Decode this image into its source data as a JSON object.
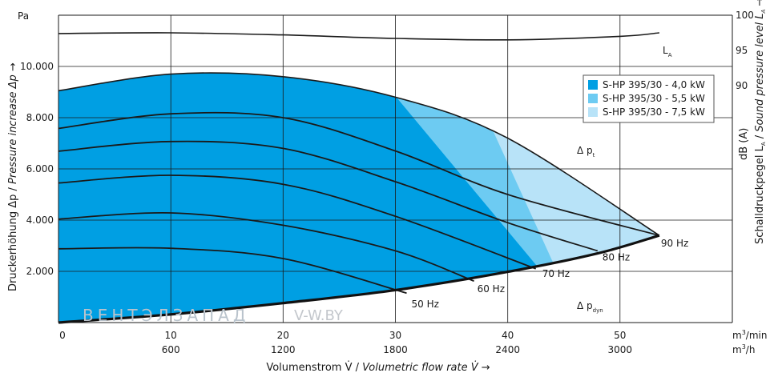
{
  "chart_data": {
    "type": "line",
    "y_left": {
      "unit": "Pa",
      "label_de": "Druckerhöhung Δp / ",
      "label_en": "Pressure increase Δp →",
      "ticks": [
        "2.000",
        "4.000",
        "6.000",
        "8.000",
        "10.000"
      ],
      "tick_values": [
        2000,
        4000,
        6000,
        8000,
        10000
      ],
      "range": [
        0,
        12000
      ]
    },
    "y_right": {
      "ticks": [
        "90",
        "95",
        "100"
      ],
      "tick_values": [
        90,
        95,
        100
      ],
      "range": [
        90,
        100
      ],
      "label_de": "Schalldruckpegel L",
      "label_sub": "A",
      "label_mid": " / ",
      "label_en": "Sound pressure level L",
      "label_en_sub": "A",
      "label_arrow": " →",
      "unit_label": "dB (A)"
    },
    "x_axis": {
      "ticks_min": [
        "0",
        "10",
        "20",
        "30",
        "40",
        "50"
      ],
      "ticks_h": [
        "600",
        "1200",
        "1800",
        "2400",
        "3000"
      ],
      "tick_values": [
        0,
        10,
        20,
        30,
        40,
        50
      ],
      "range": [
        0,
        60
      ],
      "unit_min_base": "m",
      "unit_min_exp": "3",
      "unit_min_suffix": "/min",
      "unit_h_base": "m",
      "unit_h_exp": "3",
      "unit_h_suffix": "/h",
      "title_de": "Volumenstrom V̇ / ",
      "title_en": "Volumetric flow rate V̇ →"
    },
    "legend": {
      "placement": "top-right",
      "entries": [
        {
          "label": "S-HP 395/30 - 4,0 kW",
          "color": "#009fe3"
        },
        {
          "label": "S-HP 395/30 - 5,5 kW",
          "color": "#6dcbf2"
        },
        {
          "label": "S-HP 395/30 - 7,5 kW",
          "color": "#b8e3f8"
        }
      ]
    },
    "annotations": {
      "delta_pt": "Δ p",
      "delta_pt_sub": "t",
      "delta_pdyn": "Δ p",
      "delta_pdyn_sub": "dyn",
      "la": "L",
      "la_sub": "A"
    },
    "frequency_curves": [
      {
        "label": "50 Hz",
        "points": [
          [
            0,
            2880
          ],
          [
            10,
            2900
          ],
          [
            20,
            2500
          ],
          [
            31,
            1150
          ]
        ]
      },
      {
        "label": "60 Hz",
        "points": [
          [
            0,
            4040
          ],
          [
            10,
            4280
          ],
          [
            20,
            3800
          ],
          [
            30,
            2800
          ],
          [
            37,
            1620
          ]
        ]
      },
      {
        "label": "70 Hz",
        "points": [
          [
            0,
            5450
          ],
          [
            10,
            5750
          ],
          [
            20,
            5400
          ],
          [
            30,
            4150
          ],
          [
            42.5,
            2100
          ]
        ]
      },
      {
        "label": "80 Hz",
        "points": [
          [
            0,
            6690
          ],
          [
            10,
            7070
          ],
          [
            20,
            6800
          ],
          [
            30,
            5500
          ],
          [
            40,
            3900
          ],
          [
            48,
            2800
          ]
        ]
      },
      {
        "label": "90 Hz",
        "points": [
          [
            0,
            7580
          ],
          [
            10,
            8150
          ],
          [
            20,
            8000
          ],
          [
            30,
            6700
          ],
          [
            40,
            5000
          ],
          [
            53.5,
            3400
          ]
        ]
      }
    ],
    "max_envelope_7_5kW": [
      [
        0,
        9050
      ],
      [
        10,
        9700
      ],
      [
        20,
        9600
      ],
      [
        30,
        8800
      ],
      [
        40,
        7200
      ],
      [
        53.5,
        3400
      ]
    ],
    "dynamic_pressure_curve": [
      [
        0,
        0
      ],
      [
        10,
        320
      ],
      [
        20,
        760
      ],
      [
        30,
        1270
      ],
      [
        40,
        1980
      ],
      [
        48,
        2700
      ],
      [
        53.5,
        3400
      ]
    ],
    "sound_level_LA": [
      [
        0,
        97.4
      ],
      [
        10,
        97.5
      ],
      [
        20,
        97.2
      ],
      [
        30,
        96.7
      ],
      [
        40,
        96.5
      ],
      [
        50,
        97.0
      ],
      [
        53.5,
        97.5
      ]
    ]
  },
  "watermark": {
    "cyrillic": "ВЕНТЭЛЗАПАД",
    "latin": "V-W.BY"
  }
}
